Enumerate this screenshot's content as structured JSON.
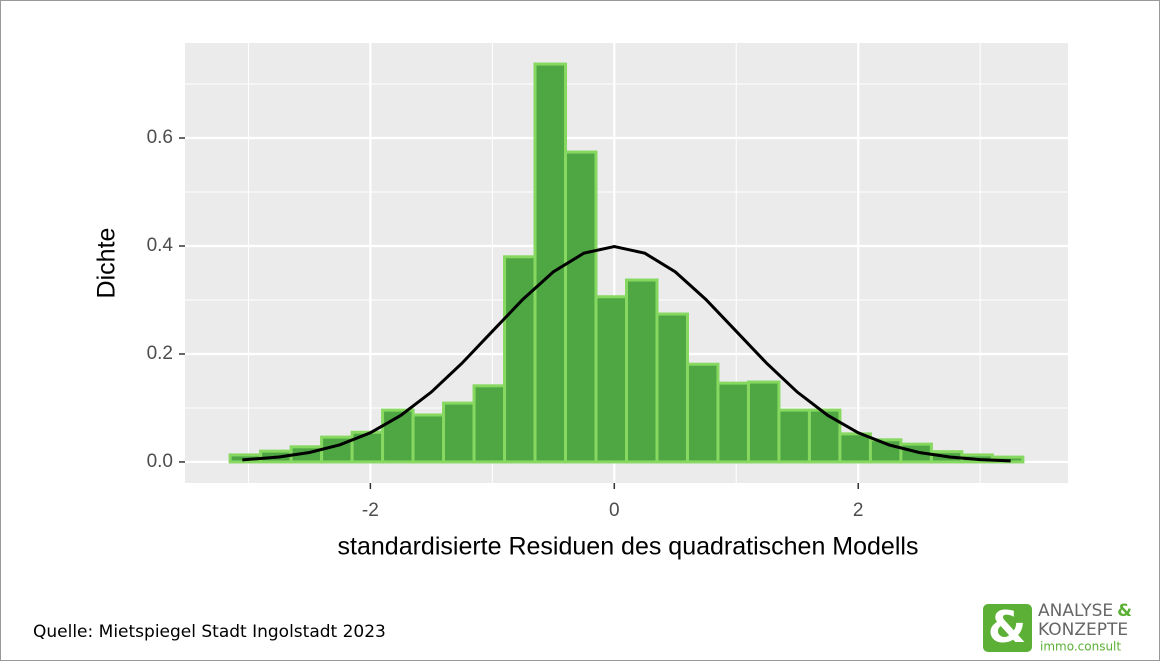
{
  "chart_data": {
    "type": "histogram",
    "xlabel": "standardisierte Residuen des quadratischen Modells",
    "ylabel": "Dichte",
    "bins": [
      -3.15,
      -2.9,
      -2.65,
      -2.4,
      -2.15,
      -1.9,
      -1.65,
      -1.4,
      -1.15,
      -0.9,
      -0.65,
      -0.4,
      -0.15,
      0.1,
      0.35,
      0.6,
      0.85,
      1.1,
      1.35,
      1.6,
      1.85,
      2.1,
      2.35,
      2.6,
      2.85,
      3.1,
      3.35
    ],
    "values": [
      0.013,
      0.02,
      0.028,
      0.046,
      0.055,
      0.096,
      0.087,
      0.109,
      0.141,
      0.38,
      0.737,
      0.574,
      0.306,
      0.337,
      0.274,
      0.181,
      0.146,
      0.148,
      0.096,
      0.096,
      0.052,
      0.041,
      0.033,
      0.019,
      0.013,
      0.009
    ],
    "color": "#4fa744",
    "edgecolor": "#86d860",
    "curve": {
      "color": "#000000",
      "x": [
        -3.05,
        -2.75,
        -2.5,
        -2.25,
        -2,
        -1.75,
        -1.5,
        -1.25,
        -1,
        -0.75,
        -0.5,
        -0.25,
        0,
        0.25,
        0.5,
        0.75,
        1,
        1.25,
        1.5,
        1.75,
        2,
        2.25,
        2.5,
        2.75,
        3,
        3.25
      ],
      "y": [
        0.0038,
        0.0091,
        0.0175,
        0.0317,
        0.054,
        0.0863,
        0.1295,
        0.1826,
        0.242,
        0.3011,
        0.3521,
        0.3867,
        0.3989,
        0.3867,
        0.3521,
        0.3011,
        0.242,
        0.1826,
        0.1295,
        0.0863,
        0.054,
        0.0317,
        0.0175,
        0.0091,
        0.0044,
        0.002
      ]
    },
    "xlim": [
      -3.52,
      3.72
    ],
    "ylim": [
      -0.039,
      0.776
    ],
    "xticks": [
      -2,
      0,
      2
    ],
    "yticks": [
      {
        "value": 0,
        "label": "0.0"
      },
      0.2,
      0.4,
      0.6
    ],
    "minor_xticks": [
      -3,
      -1,
      1,
      3
    ],
    "minor_yticks": [
      0.1,
      0.3,
      0.5,
      0.7
    ],
    "grid": true
  },
  "footer": {
    "source": "Quelle: Mietspiegel Stadt Ingolstadt 2023",
    "logo": {
      "symbol": "&",
      "line1": "ANALYSE",
      "line1_symbol": "&",
      "line2": "KONZEPTE",
      "line3": "immo.consult"
    }
  }
}
